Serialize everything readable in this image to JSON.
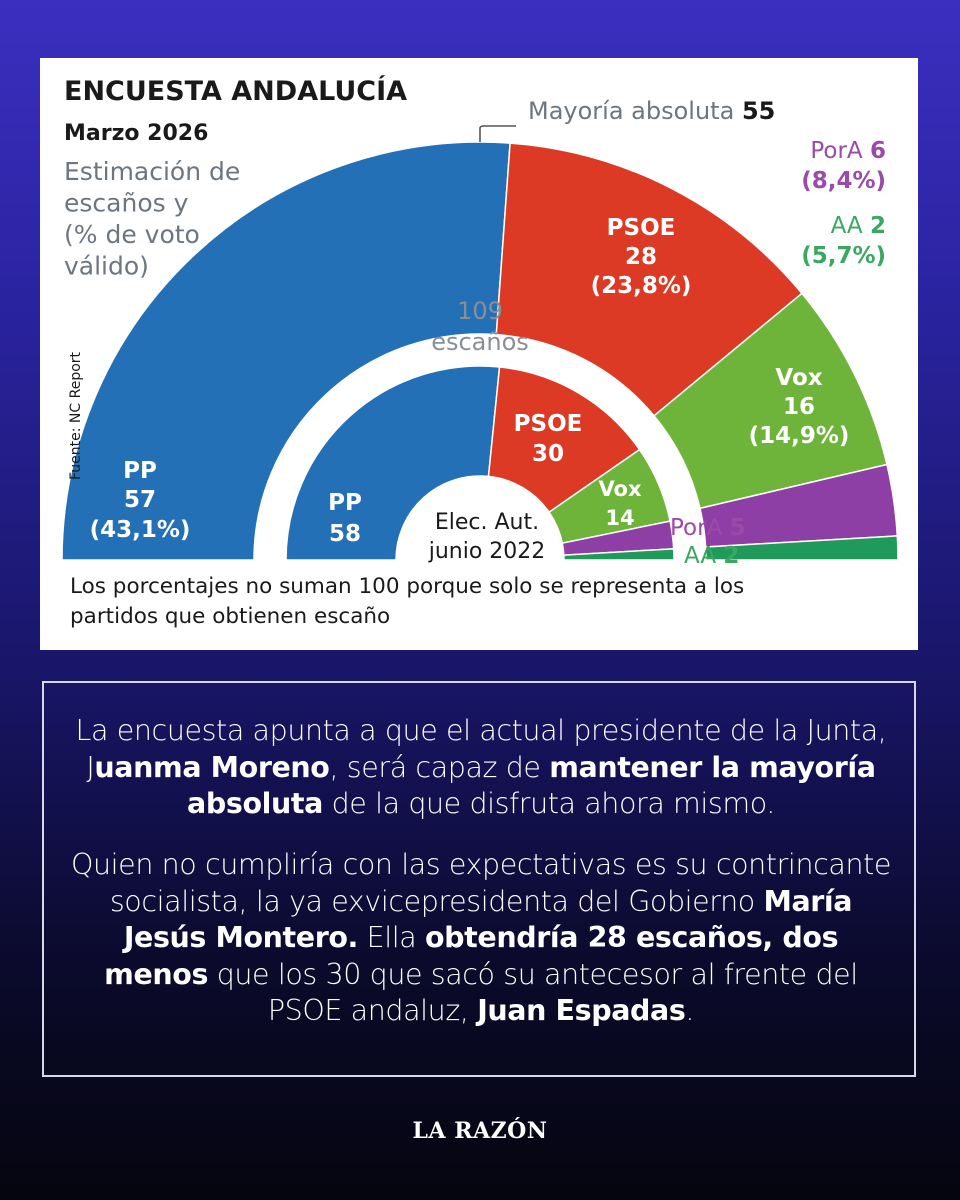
{
  "chart_data": {
    "type": "parliament-donut",
    "title": "ENCUESTA ANDALUCÍA",
    "subtitle": "Marzo 2026",
    "description_lines": [
      "Estimación de",
      "escaños y",
      "(% de voto",
      "válido)"
    ],
    "source": "Fuente: NC Report",
    "majority": {
      "label": "Mayoría absoluta",
      "value": "55"
    },
    "total": {
      "number": "109",
      "label": "escaños"
    },
    "outer_ring": [
      {
        "party": "PP",
        "seats": 57,
        "seats_label": "57",
        "pct": "(43,1%)",
        "color": "#2370b6"
      },
      {
        "party": "PSOE",
        "seats": 28,
        "seats_label": "28",
        "pct": "(23,8%)",
        "color": "#dc3a25"
      },
      {
        "party": "Vox",
        "seats": 16,
        "seats_label": "16",
        "pct": "(14,9%)",
        "color": "#6fb43a"
      },
      {
        "party": "PorA",
        "seats": 6,
        "seats_label": "6",
        "pct": "(8,4%)",
        "color": "#8e3fa6"
      },
      {
        "party": "AA",
        "seats": 2,
        "seats_label": "2",
        "pct": "(5,7%)",
        "color": "#1f9a5a"
      }
    ],
    "inner_ring": {
      "label_lines": [
        "Elec. Aut.",
        "junio 2022"
      ],
      "segments": [
        {
          "party": "PP",
          "seats": 58,
          "seats_label": "58",
          "color": "#2370b6"
        },
        {
          "party": "PSOE",
          "seats": 30,
          "seats_label": "30",
          "color": "#dc3a25"
        },
        {
          "party": "Vox",
          "seats": 14,
          "seats_label": "14",
          "color": "#6fb43a"
        },
        {
          "party": "PorA",
          "seats": 5,
          "seats_label": "5",
          "color": "#8e3fa6"
        },
        {
          "party": "AA",
          "seats": 2,
          "seats_label": "2",
          "color": "#1f9a5a"
        }
      ]
    },
    "footnote_lines": [
      "Los porcentajes no suman 100 porque solo se representa a los",
      "partidos que obtienen escaño"
    ]
  },
  "info": {
    "p1": [
      {
        "text": "La encuesta apunta a que el actual presidente de la Junta, J",
        "bold": false
      },
      {
        "text": "uanma Moreno",
        "bold": true
      },
      {
        "text": ", será capaz de ",
        "bold": false
      },
      {
        "text": "mantener la mayoría absoluta",
        "bold": true
      },
      {
        "text": " de la que disfruta ahora mismo.",
        "bold": false
      }
    ],
    "p2": [
      {
        "text": "Quien no cumpliría con las expectativas es su contrincante socialista, la ya exvicepresidenta del Gobierno ",
        "bold": false
      },
      {
        "text": "María Jesús Montero.",
        "bold": true
      },
      {
        "text": " Ella ",
        "bold": false
      },
      {
        "text": "obtendría 28 escaños, dos menos",
        "bold": true
      },
      {
        "text": " que los 30 que sacó su antecesor al frente del PSOE andaluz, ",
        "bold": false
      },
      {
        "text": "Juan Espadas",
        "bold": true
      },
      {
        "text": ".",
        "bold": false
      }
    ]
  },
  "brand": {
    "logo": "LA RAZÓN"
  },
  "colors": {
    "text_dark": "#1a1a1a",
    "text_gray": "#6d7680",
    "pora_text": "#9a4aa8",
    "aa_text": "#3aa860"
  }
}
